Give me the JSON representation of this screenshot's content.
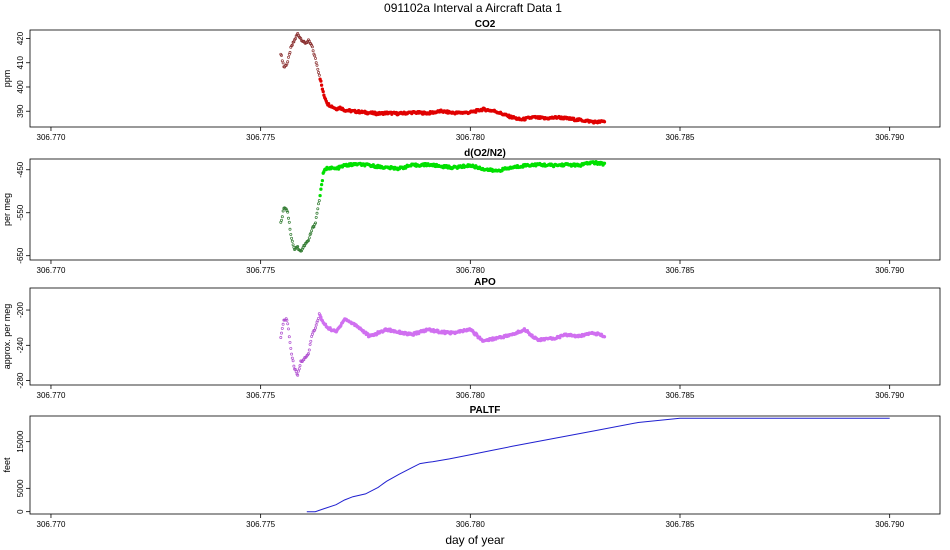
{
  "figure": {
    "title": "091102a   Interval a Aircraft Data 1",
    "xlabel": "day of year"
  },
  "chart_data": [
    {
      "type": "scatter",
      "title": "CO2",
      "ylabel": "ppm",
      "color": "#e00000",
      "xlim": [
        306.7695,
        306.7912
      ],
      "ylim": [
        383.5,
        423.5
      ],
      "xticks": [
        306.77,
        306.775,
        306.78,
        306.785,
        306.79
      ],
      "xtick_labels": [
        "306.770",
        "306.775",
        "306.780",
        "306.785",
        "306.790"
      ],
      "yticks": [
        390,
        400,
        410,
        420
      ],
      "ytick_labels": [
        "390",
        "400",
        "410",
        "420"
      ],
      "series": [
        {
          "x": [
            306.77548,
            306.77556,
            306.77564,
            306.77572,
            306.7758,
            306.77588,
            306.77596,
            306.77605,
            306.77614,
            306.77622,
            306.7763,
            306.7764,
            306.7765,
            306.7766,
            306.7767,
            306.7768,
            306.7769,
            306.777,
            306.7772,
            306.7775,
            306.7778,
            306.778,
            306.7783,
            306.7786,
            306.779,
            306.7793,
            306.7796,
            306.78,
            306.7803,
            306.7806,
            306.7809,
            306.7812,
            306.7815,
            306.7818,
            306.7821,
            306.7824,
            306.7827,
            306.783,
            306.7832
          ],
          "y": [
            414,
            408,
            410,
            416,
            419,
            422,
            420,
            418,
            419,
            417,
            412,
            405,
            397,
            393,
            392,
            391,
            391.5,
            390.5,
            390,
            389.5,
            389,
            389.3,
            389,
            389.5,
            389.2,
            390,
            389.3,
            389.5,
            390.8,
            390,
            388,
            386.5,
            387.5,
            387,
            387.5,
            386.8,
            386.2,
            385.5,
            385.8
          ]
        }
      ]
    },
    {
      "type": "scatter",
      "title": "d(O2/N2)",
      "ylabel": "per meg",
      "color": "#00e000",
      "xlim": [
        306.7695,
        306.7912
      ],
      "ylim": [
        -660,
        -425
      ],
      "xticks": [
        306.77,
        306.775,
        306.78,
        306.785,
        306.79
      ],
      "xtick_labels": [
        "306.770",
        "306.775",
        "306.780",
        "306.785",
        "306.790"
      ],
      "yticks": [
        -450,
        -550,
        -650
      ],
      "ytick_labels": [
        "-450",
        "-550",
        "-650"
      ],
      "series": [
        {
          "x": [
            306.77548,
            306.77556,
            306.77564,
            306.77572,
            306.7758,
            306.77588,
            306.77596,
            306.77605,
            306.77614,
            306.77622,
            306.7763,
            306.7764,
            306.7765,
            306.7766,
            306.7768,
            306.777,
            306.7773,
            306.7776,
            306.778,
            306.7783,
            306.7786,
            306.779,
            306.7793,
            306.7796,
            306.78,
            306.7803,
            306.7806,
            306.781,
            306.7813,
            306.7816,
            306.782,
            306.7823,
            306.7826,
            306.7829,
            306.7832
          ],
          "y": [
            -575,
            -535,
            -545,
            -600,
            -635,
            -630,
            -640,
            -625,
            -615,
            -590,
            -575,
            -520,
            -455,
            -445,
            -448,
            -440,
            -437,
            -440,
            -445,
            -447,
            -440,
            -438,
            -442,
            -445,
            -440,
            -448,
            -453,
            -445,
            -440,
            -438,
            -440,
            -438,
            -440,
            -433,
            -437
          ]
        }
      ]
    },
    {
      "type": "scatter",
      "title": "APO",
      "ylabel": "approx. per meg",
      "color": "#d070f0",
      "xlim": [
        306.7695,
        306.7912
      ],
      "ylim": [
        -285,
        -175
      ],
      "xticks": [
        306.77,
        306.775,
        306.78,
        306.785,
        306.79
      ],
      "xtick_labels": [
        "306.770",
        "306.775",
        "306.780",
        "306.785",
        "306.790"
      ],
      "yticks": [
        -200,
        -240,
        -280
      ],
      "ytick_labels": [
        "-200",
        "-240",
        "-280"
      ],
      "series": [
        {
          "x": [
            306.77548,
            306.77556,
            306.77564,
            306.77572,
            306.7758,
            306.77588,
            306.77596,
            306.77605,
            306.77614,
            306.77622,
            306.7763,
            306.7764,
            306.7765,
            306.7766,
            306.7768,
            306.777,
            306.7773,
            306.7776,
            306.778,
            306.7783,
            306.7786,
            306.779,
            306.7793,
            306.7796,
            306.78,
            306.7803,
            306.7806,
            306.781,
            306.7813,
            306.7816,
            306.782,
            306.7823,
            306.7826,
            306.7829,
            306.7832
          ],
          "y": [
            -232,
            -210,
            -212,
            -245,
            -265,
            -275,
            -258,
            -255,
            -250,
            -228,
            -222,
            -205,
            -215,
            -220,
            -225,
            -210,
            -218,
            -230,
            -222,
            -225,
            -228,
            -222,
            -225,
            -226,
            -222,
            -235,
            -232,
            -228,
            -222,
            -234,
            -232,
            -228,
            -230,
            -225,
            -230
          ]
        }
      ]
    },
    {
      "type": "line",
      "title": "PALTF",
      "ylabel": "feet",
      "color": "#2020d0",
      "xlim": [
        306.7695,
        306.7912
      ],
      "ylim": [
        -500,
        20500
      ],
      "xticks": [
        306.77,
        306.775,
        306.78,
        306.785,
        306.79
      ],
      "xtick_labels": [
        "306.770",
        "306.775",
        "306.780",
        "306.785",
        "306.790"
      ],
      "yticks": [
        0,
        5000,
        15000
      ],
      "ytick_labels": [
        "0",
        "5000",
        "15000"
      ],
      "series": [
        {
          "x": [
            306.7761,
            306.7763,
            306.7765,
            306.7768,
            306.777,
            306.7772,
            306.7775,
            306.7778,
            306.778,
            306.7783,
            306.7786,
            306.7788,
            306.779,
            306.7791,
            306.7795,
            306.78,
            306.7805,
            306.781,
            306.782,
            306.783,
            306.784,
            306.785,
            306.7852,
            306.787,
            306.789,
            306.79
          ],
          "y": [
            0,
            0,
            600,
            1500,
            2500,
            3200,
            3800,
            5200,
            6500,
            8000,
            9400,
            10300,
            10600,
            10700,
            11300,
            12200,
            13100,
            14000,
            15700,
            17400,
            19100,
            20000,
            20000,
            20000,
            20000,
            20000
          ]
        }
      ]
    }
  ]
}
